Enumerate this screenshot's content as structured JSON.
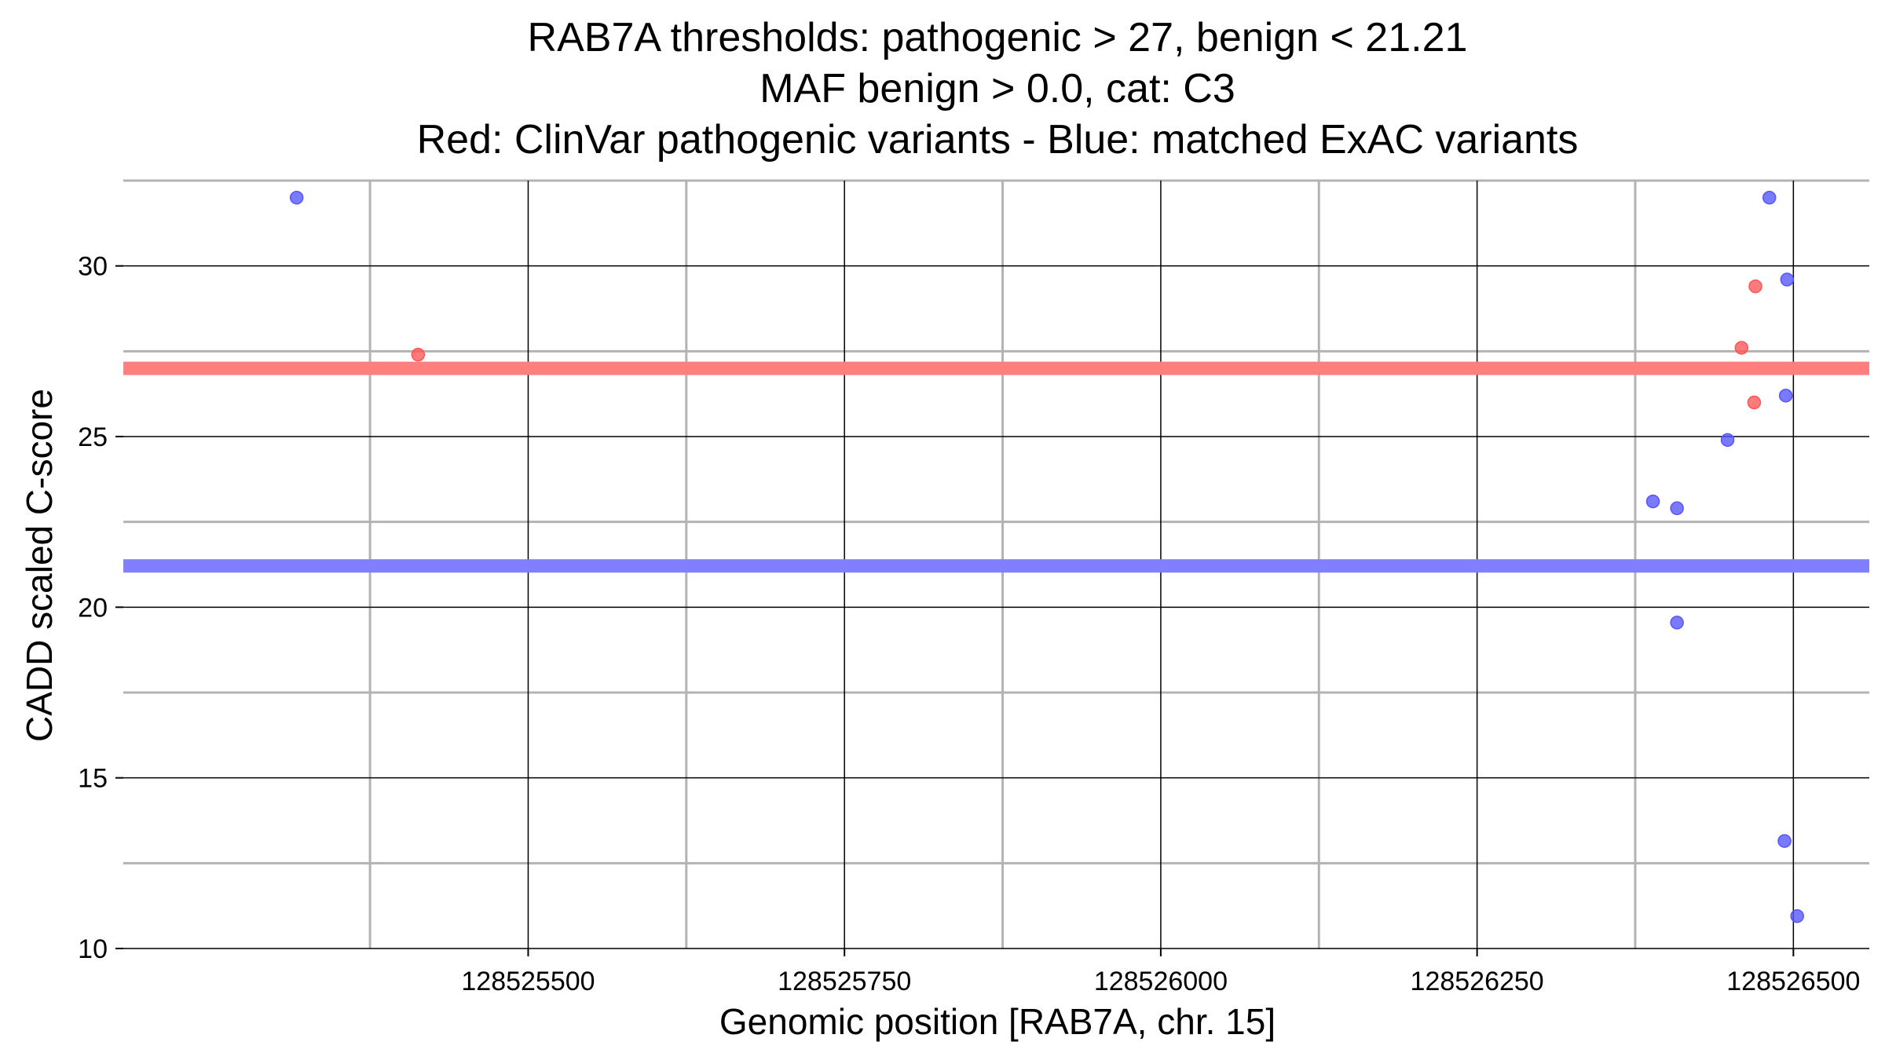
{
  "chart_data": {
    "type": "scatter",
    "title_lines": [
      "RAB7A thresholds: pathogenic > 27, benign < 21.21",
      "MAF benign > 0.0, cat: C3",
      "Red: ClinVar pathogenic variants - Blue: matched ExAC variants"
    ],
    "xlabel": "Genomic position [RAB7A, chr. 15]",
    "ylabel": "CADD scaled C-score",
    "xlim": [
      128525180,
      128526560
    ],
    "ylim": [
      10,
      32.5
    ],
    "x_ticks": [
      128525500,
      128525750,
      128526000,
      128526250,
      128526500
    ],
    "x_tick_labels": [
      "128525500",
      "128525750",
      "128526000",
      "128526250",
      "128526500"
    ],
    "y_ticks": [
      10,
      15,
      20,
      25,
      30
    ],
    "y_tick_labels": [
      "10",
      "15",
      "20",
      "25",
      "30"
    ],
    "grid": true,
    "thresholds": [
      {
        "name": "pathogenic",
        "value": 27,
        "color": "#ff7f7f"
      },
      {
        "name": "benign",
        "value": 21.21,
        "color": "#7f7fff"
      }
    ],
    "series": [
      {
        "name": "ClinVar pathogenic variants",
        "color": "#ff5555",
        "points": [
          {
            "x": 128525413,
            "y": 27.4
          },
          {
            "x": 128526459,
            "y": 27.6
          },
          {
            "x": 128526470,
            "y": 29.4
          },
          {
            "x": 128526469,
            "y": 26.0
          }
        ]
      },
      {
        "name": "matched ExAC variants",
        "color": "#5555ff",
        "points": [
          {
            "x": 128525317,
            "y": 32.0
          },
          {
            "x": 128526481,
            "y": 32.0
          },
          {
            "x": 128526495,
            "y": 29.6
          },
          {
            "x": 128526494,
            "y": 26.2
          },
          {
            "x": 128526448,
            "y": 24.9
          },
          {
            "x": 128526389,
            "y": 23.1
          },
          {
            "x": 128526408,
            "y": 22.9
          },
          {
            "x": 128526408,
            "y": 19.55
          },
          {
            "x": 128526493,
            "y": 13.15
          },
          {
            "x": 128526503,
            "y": 10.95
          }
        ]
      }
    ]
  }
}
